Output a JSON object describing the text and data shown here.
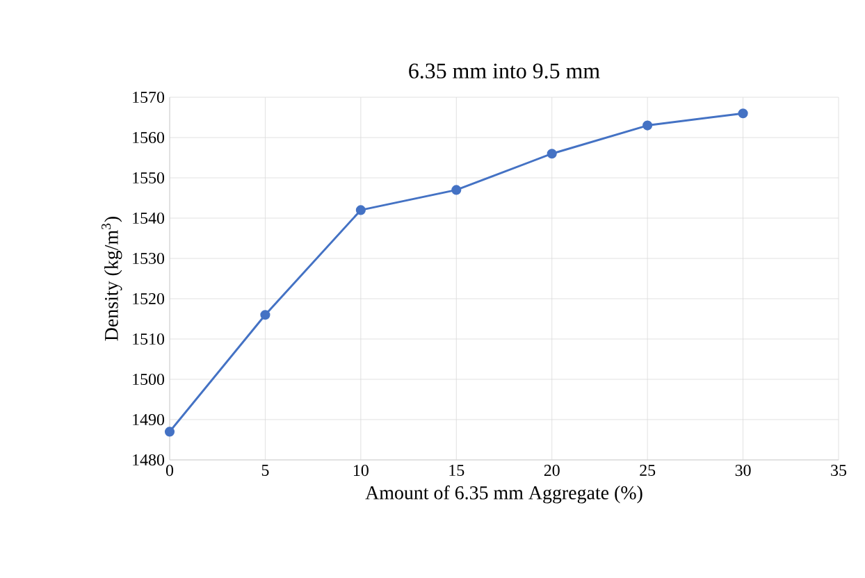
{
  "chart_data": {
    "type": "line",
    "title": "6.35 mm into 9.5 mm",
    "xlabel": "Amount of 6.35 mm Aggregate (%)",
    "ylabel": "Density (kg/m$^{3}$)",
    "x": [
      0,
      5,
      10,
      15,
      20,
      25,
      30
    ],
    "series": [
      {
        "color": "#4472c4",
        "values": [
          1487,
          1516,
          1542,
          1547,
          1556,
          1563,
          1566
        ]
      }
    ],
    "xlim": [
      0,
      35
    ],
    "ylim": [
      1480,
      1570
    ],
    "xticks": [
      0,
      5,
      10,
      15,
      20,
      25,
      30,
      35
    ],
    "yticks": [
      1480,
      1490,
      1500,
      1510,
      1520,
      1530,
      1540,
      1550,
      1560,
      1570
    ],
    "grid": true,
    "marker": "circle",
    "line_style": "solid"
  }
}
